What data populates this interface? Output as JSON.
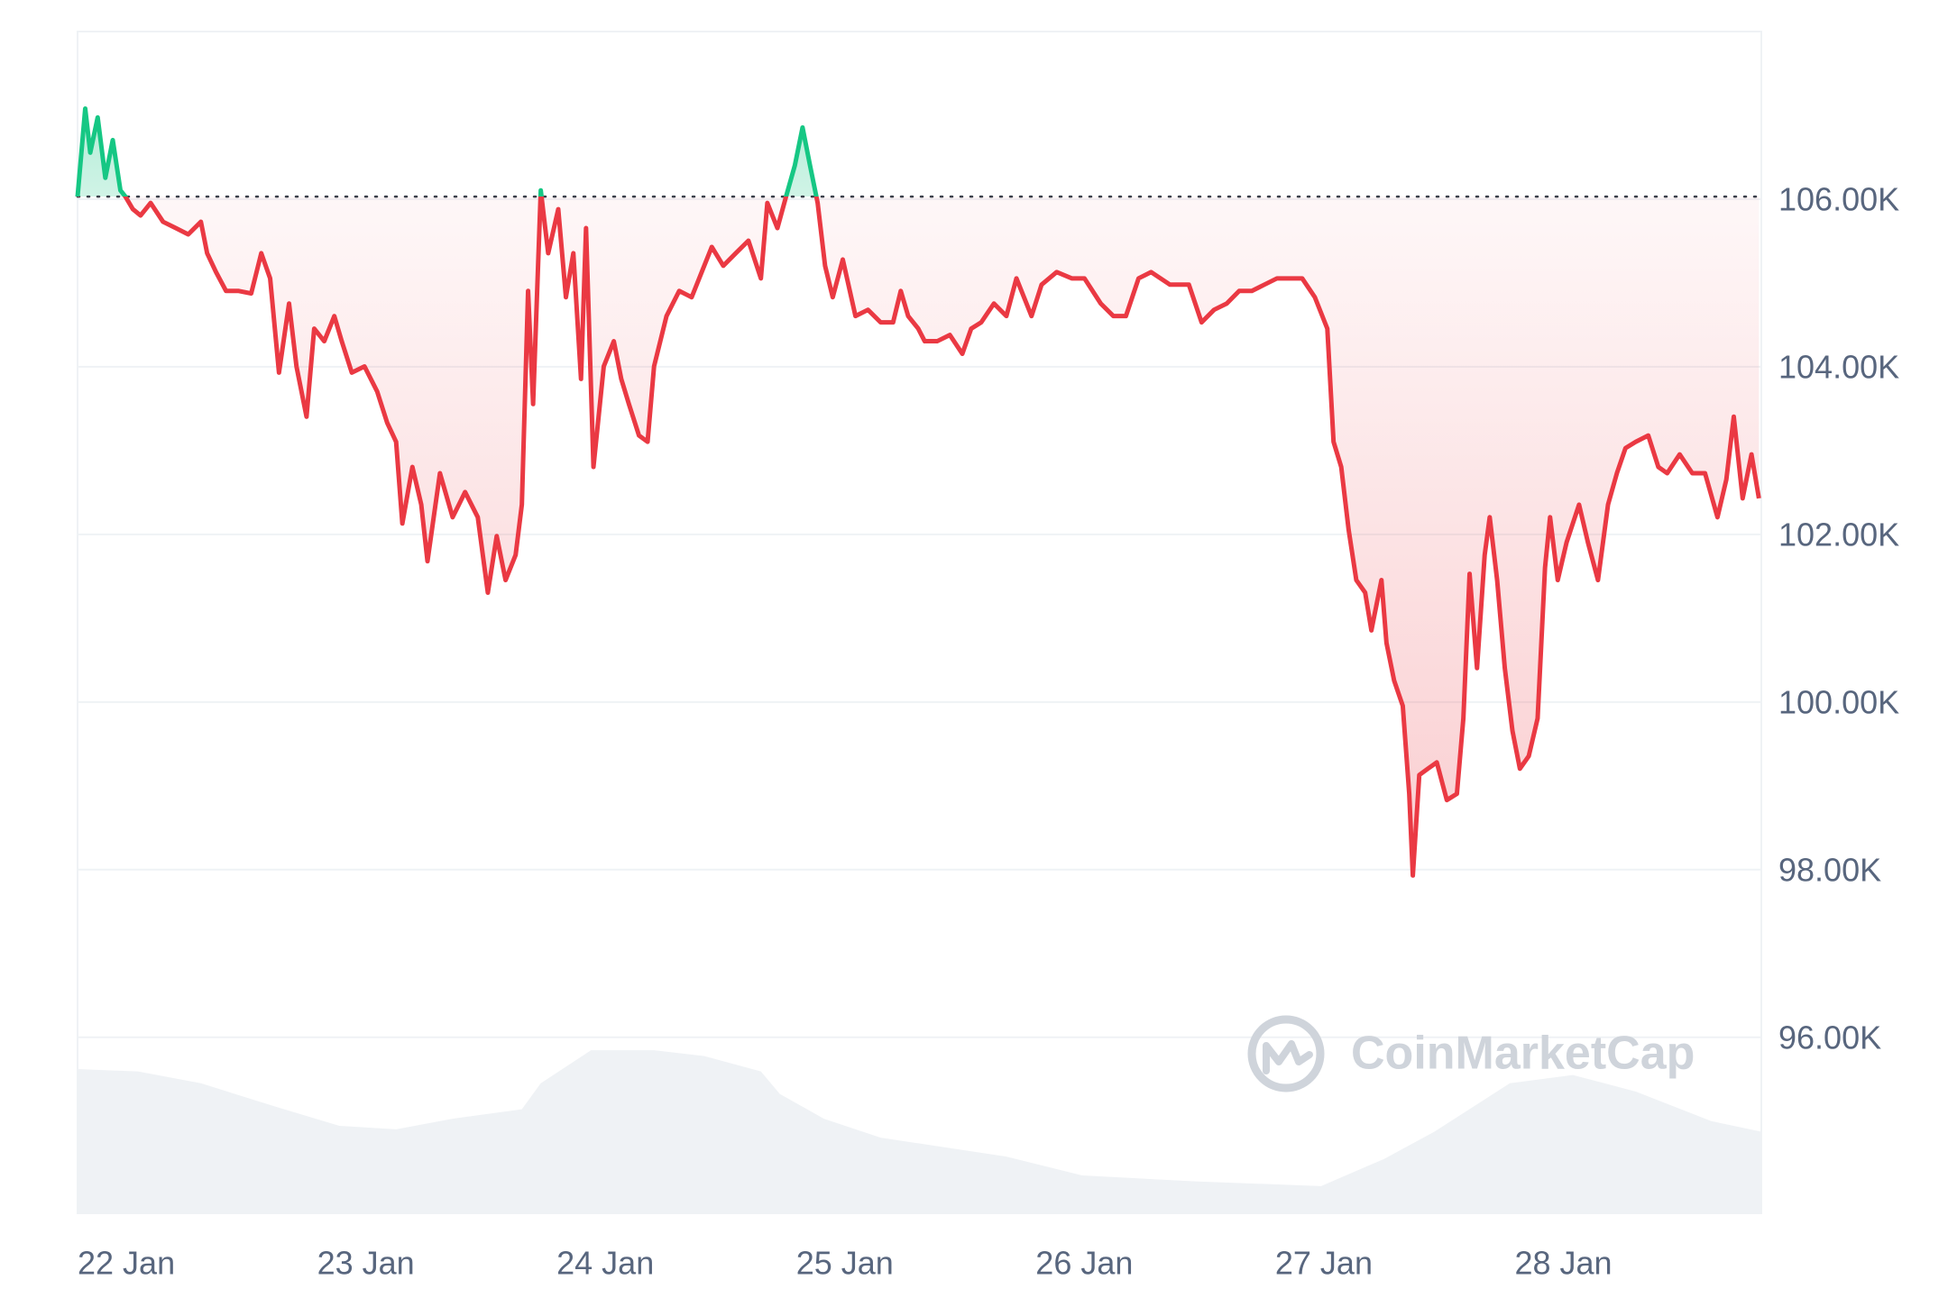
{
  "chart_data": {
    "type": "line",
    "watermark": "CoinMarketCap",
    "xlim": [
      0,
      7.03
    ],
    "xticks": [
      {
        "value": 0,
        "label": "22 Jan"
      },
      {
        "value": 1,
        "label": "23 Jan"
      },
      {
        "value": 2,
        "label": "24 Jan"
      },
      {
        "value": 3,
        "label": "25 Jan"
      },
      {
        "value": 4,
        "label": "26 Jan"
      },
      {
        "value": 5,
        "label": "27 Jan"
      },
      {
        "value": 6,
        "label": "28 Jan"
      }
    ],
    "ylim": [
      93900,
      108000
    ],
    "yticks": [
      {
        "value": 96000,
        "label": "96.00K"
      },
      {
        "value": 98000,
        "label": "98.00K"
      },
      {
        "value": 100000,
        "label": "100.00K"
      },
      {
        "value": 102000,
        "label": "102.00K"
      },
      {
        "value": 104000,
        "label": "104.00K"
      },
      {
        "value": 106000,
        "label": "106.00K"
      }
    ],
    "y2lim": [
      0,
      100
    ],
    "grid": true,
    "series": [
      {
        "color": "#ea3943",
        "up_color": "#16c784",
        "baseline": 106030,
        "x": [
          0,
          0.032,
          0.053,
          0.084,
          0.116,
          0.147,
          0.179,
          0.2,
          0.231,
          0.263,
          0.305,
          0.357,
          0.41,
          0.462,
          0.515,
          0.541,
          0.578,
          0.62,
          0.673,
          0.725,
          0.767,
          0.804,
          0.841,
          0.883,
          0.914,
          0.956,
          0.988,
          1.03,
          1.072,
          1.103,
          1.145,
          1.198,
          1.251,
          1.293,
          1.33,
          1.356,
          1.398,
          1.435,
          1.461,
          1.513,
          1.566,
          1.618,
          1.671,
          1.713,
          1.75,
          1.787,
          1.829,
          1.855,
          1.881,
          1.902,
          1.934,
          1.965,
          2.007,
          2.039,
          2.07,
          2.102,
          2.123,
          2.154,
          2.197,
          2.239,
          2.27,
          2.302,
          2.344,
          2.38,
          2.407,
          2.459,
          2.512,
          2.564,
          2.606,
          2.648,
          2.696,
          2.748,
          2.801,
          2.853,
          2.88,
          2.922,
          2.958,
          2.995,
          3.027,
          3.058,
          3.09,
          3.121,
          3.153,
          3.195,
          3.248,
          3.3,
          3.353,
          3.405,
          3.437,
          3.468,
          3.51,
          3.537,
          3.589,
          3.642,
          3.694,
          3.731,
          3.773,
          3.826,
          3.878,
          3.92,
          3.983,
          4.025,
          4.088,
          4.151,
          4.204,
          4.272,
          4.325,
          4.377,
          4.43,
          4.482,
          4.561,
          4.64,
          4.693,
          4.745,
          4.798,
          4.85,
          4.903,
          4.955,
          5.008,
          5.06,
          5.113,
          5.166,
          5.218,
          5.244,
          5.276,
          5.307,
          5.339,
          5.376,
          5.402,
          5.444,
          5.465,
          5.497,
          5.533,
          5.56,
          5.575,
          5.602,
          5.638,
          5.675,
          5.717,
          5.759,
          5.786,
          5.812,
          5.843,
          5.875,
          5.896,
          5.927,
          5.959,
          5.991,
          6.022,
          6.059,
          6.096,
          6.127,
          6.148,
          6.18,
          6.217,
          6.269,
          6.306,
          6.348,
          6.39,
          6.427,
          6.463,
          6.506,
          6.558,
          6.6,
          6.637,
          6.689,
          6.742,
          6.795,
          6.847,
          6.884,
          6.915,
          6.952,
          6.989,
          7.02
        ],
        "values": [
          106030,
          107080,
          106555,
          106975,
          106255,
          106705,
          106105,
          106030,
          105880,
          105805,
          105955,
          105730,
          105655,
          105580,
          105730,
          105355,
          105130,
          104905,
          104905,
          104875,
          105355,
          105055,
          103930,
          104755,
          104005,
          103405,
          104455,
          104305,
          104605,
          104305,
          103930,
          104005,
          103705,
          103330,
          103105,
          102130,
          102805,
          102355,
          101680,
          102730,
          102205,
          102505,
          102205,
          101305,
          101980,
          101455,
          101755,
          102355,
          104905,
          103555,
          106105,
          105355,
          105880,
          104830,
          105355,
          103855,
          105655,
          102805,
          104005,
          104305,
          103855,
          103555,
          103180,
          103105,
          104005,
          104605,
          104905,
          104830,
          105130,
          105430,
          105205,
          105355,
          105505,
          105055,
          105955,
          105655,
          106030,
          106405,
          106855,
          106405,
          105955,
          105205,
          104830,
          105280,
          104605,
          104680,
          104530,
          104530,
          104905,
          104605,
          104455,
          104305,
          104305,
          104380,
          104155,
          104455,
          104530,
          104755,
          104605,
          105055,
          104605,
          104980,
          105130,
          105055,
          105055,
          104755,
          104605,
          104605,
          105055,
          105130,
          104980,
          104980,
          104530,
          104680,
          104755,
          104905,
          104905,
          104980,
          105055,
          105055,
          105055,
          104830,
          104455,
          103105,
          102805,
          102055,
          101455,
          101305,
          100855,
          101455,
          100705,
          100255,
          99955,
          98905,
          97930,
          99130,
          99205,
          99280,
          98830,
          98905,
          99805,
          101530,
          100405,
          101755,
          102205,
          101455,
          100405,
          99655,
          99205,
          99355,
          99805,
          101605,
          102205,
          101455,
          101905,
          102355,
          101905,
          101455,
          102355,
          102730,
          103030,
          103105,
          103180,
          102805,
          102730,
          102955,
          102730,
          102730,
          102205,
          102655,
          103405,
          102430,
          102955,
          102430
        ]
      },
      {
        "type": "area",
        "axis": "y2",
        "color": "#eff2f5",
        "x": [
          0,
          0.252,
          0.515,
          0.83,
          1.093,
          1.33,
          1.566,
          1.855,
          1.934,
          2.144,
          2.407,
          2.617,
          2.853,
          2.932,
          3.116,
          3.353,
          3.878,
          4.194,
          4.667,
          5.192,
          5.455,
          5.665,
          5.98,
          6.243,
          6.506,
          6.821,
          7.03
        ],
        "values": [
          12.2,
          12.0,
          11.0,
          9.0,
          7.4,
          7.1,
          8.0,
          8.8,
          11.0,
          13.8,
          13.8,
          13.3,
          12.0,
          10.1,
          8.0,
          6.4,
          4.8,
          3.2,
          2.7,
          2.3,
          4.6,
          6.9,
          11.0,
          11.7,
          10.3,
          7.8,
          6.9
        ]
      }
    ]
  }
}
